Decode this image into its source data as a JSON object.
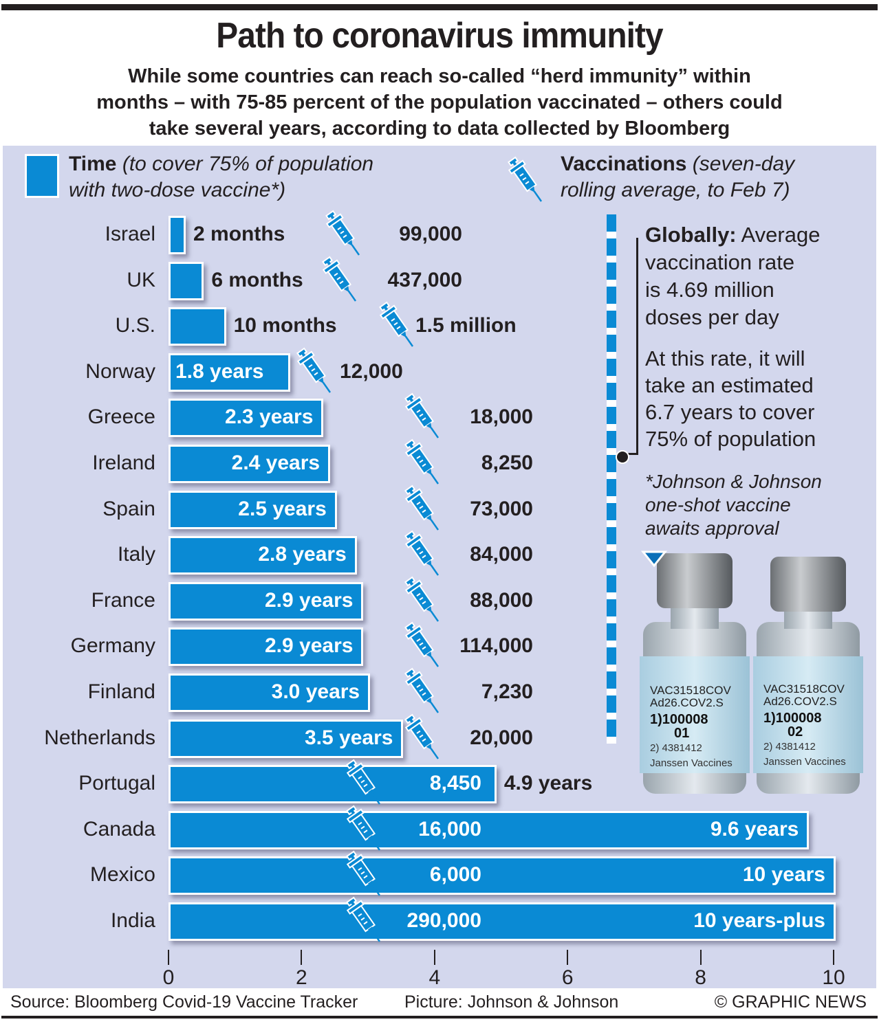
{
  "header": {
    "title": "Path to coronavirus immunity",
    "subtitle_lines": [
      "While some countries can reach so-called “herd immunity” within",
      "months – with 75-85 percent of the population vaccinated – others could",
      "take several years, according to data collected by Bloomberg"
    ]
  },
  "legend": {
    "time_bold": "Time",
    "time_italic_1": "(to cover 75% of population",
    "time_italic_2": "with two-dose vaccine*)",
    "vacc_bold": "Vaccinations",
    "vacc_italic_1": "(seven-day",
    "vacc_italic_2": "rolling average, to Feb 7)",
    "time_color": "#0a8ad4",
    "vacc_icon": "syringe-icon"
  },
  "sidebar": {
    "globally_bold": "Globally:",
    "globally_lines": [
      "Average",
      "vaccination rate",
      "is 4.69 million",
      "doses per day"
    ],
    "rate_lines": [
      "At this rate, it will",
      "take an estimated",
      "6.7 years to cover",
      "75% of population"
    ],
    "footnote_lines": [
      "*Johnson & Johnson",
      "one-shot vaccine",
      "awaits approval"
    ],
    "global_years": 6.7,
    "vial_labels": [
      {
        "line1": "VAC31518COV",
        "line2": "Ad26.COV2.S",
        "line3": "1)100008",
        "line4": "01",
        "line5": "2) 4381412",
        "line6": "Janssen Vaccines"
      },
      {
        "line1": "VAC31518COV",
        "line2": "Ad26.COV2.S",
        "line3": "1)100008",
        "line4": "02",
        "line5": "2) 4381412",
        "line6": "Janssen Vaccines"
      }
    ]
  },
  "footer": {
    "source": "Source: Bloomberg Covid-19 Vaccine Tracker",
    "picture": "Picture: Johnson & Johnson",
    "copyright": "© GRAPHIC NEWS"
  },
  "chart_data": {
    "type": "bar",
    "orientation": "horizontal",
    "title": "Path to coronavirus immunity",
    "xlabel": "",
    "ylabel": "",
    "xlim": [
      0,
      10
    ],
    "xticks": [
      0,
      2,
      4,
      6,
      8,
      10
    ],
    "series": [
      {
        "name": "Time (years to cover 75% of population with two-dose vaccine)",
        "color": "#0a8ad4"
      }
    ],
    "categories": [
      "Israel",
      "UK",
      "U.S.",
      "Norway",
      "Greece",
      "Ireland",
      "Spain",
      "Italy",
      "France",
      "Germany",
      "Finland",
      "Netherlands",
      "Portugal",
      "Canada",
      "Mexico",
      "India"
    ],
    "values": [
      0.1667,
      0.5,
      0.8333,
      1.8,
      2.3,
      2.4,
      2.5,
      2.8,
      2.9,
      2.9,
      3.0,
      3.5,
      4.9,
      9.6,
      10,
      10
    ],
    "time_labels": [
      "2 months",
      "6 months",
      "10 months",
      "1.8 years",
      "2.3 years",
      "2.4 years",
      "2.5 years",
      "2.8 years",
      "2.9 years",
      "2.9 years",
      "3.0 years",
      "3.5 years",
      "4.9 years",
      "9.6 years",
      "10 years",
      "10 years-plus"
    ],
    "vaccinations_labels": [
      "99,000",
      "437,000",
      "1.5 million",
      "12,000",
      "18,000",
      "8,250",
      "73,000",
      "84,000",
      "88,000",
      "114,000",
      "7,230",
      "20,000",
      "8,450",
      "16,000",
      "6,000",
      "290,000"
    ],
    "vaccinations_per_day": [
      99000,
      437000,
      1500000,
      12000,
      18000,
      8250,
      73000,
      84000,
      88000,
      114000,
      7230,
      20000,
      8450,
      16000,
      6000,
      290000
    ],
    "reference_line": {
      "label": "Global average",
      "value": 6.7
    }
  }
}
